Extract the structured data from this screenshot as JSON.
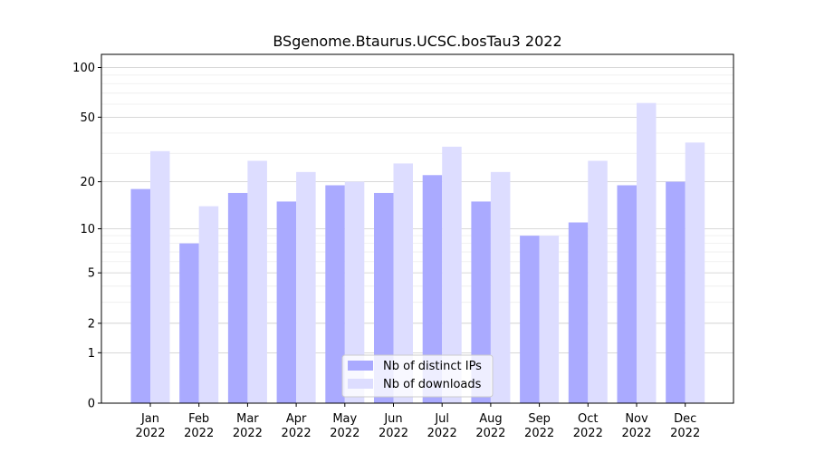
{
  "chart_data": {
    "type": "bar",
    "title": "BSgenome.Btaurus.UCSC.bosTau3 2022",
    "xlabel": "",
    "ylabel": "",
    "y_scale": "log(1+y)",
    "ylim": [
      0,
      120
    ],
    "grid": "horizontal major + minor",
    "legend_position": "bottom-center",
    "y_ticks": [
      {
        "value": 0,
        "label": "0"
      },
      {
        "value": 1,
        "label": "1"
      },
      {
        "value": 2,
        "label": "2"
      },
      {
        "value": 5,
        "label": "5"
      },
      {
        "value": 10,
        "label": "10"
      },
      {
        "value": 20,
        "label": "20"
      },
      {
        "value": 50,
        "label": "50"
      },
      {
        "value": 100,
        "label": "100"
      }
    ],
    "categories": [
      {
        "month": "Jan",
        "year": "2022"
      },
      {
        "month": "Feb",
        "year": "2022"
      },
      {
        "month": "Mar",
        "year": "2022"
      },
      {
        "month": "Apr",
        "year": "2022"
      },
      {
        "month": "May",
        "year": "2022"
      },
      {
        "month": "Jun",
        "year": "2022"
      },
      {
        "month": "Jul",
        "year": "2022"
      },
      {
        "month": "Aug",
        "year": "2022"
      },
      {
        "month": "Sep",
        "year": "2022"
      },
      {
        "month": "Oct",
        "year": "2022"
      },
      {
        "month": "Nov",
        "year": "2022"
      },
      {
        "month": "Dec",
        "year": "2022"
      }
    ],
    "series": [
      {
        "name": "Nb of distinct IPs",
        "color": "#aaaaff",
        "values": [
          18,
          8,
          17,
          15,
          19,
          17,
          22,
          15,
          9,
          11,
          19,
          20
        ]
      },
      {
        "name": "Nb of downloads",
        "color": "#ddddff",
        "values": [
          31,
          14,
          27,
          23,
          20,
          26,
          33,
          23,
          9,
          27,
          61,
          35
        ]
      }
    ]
  }
}
